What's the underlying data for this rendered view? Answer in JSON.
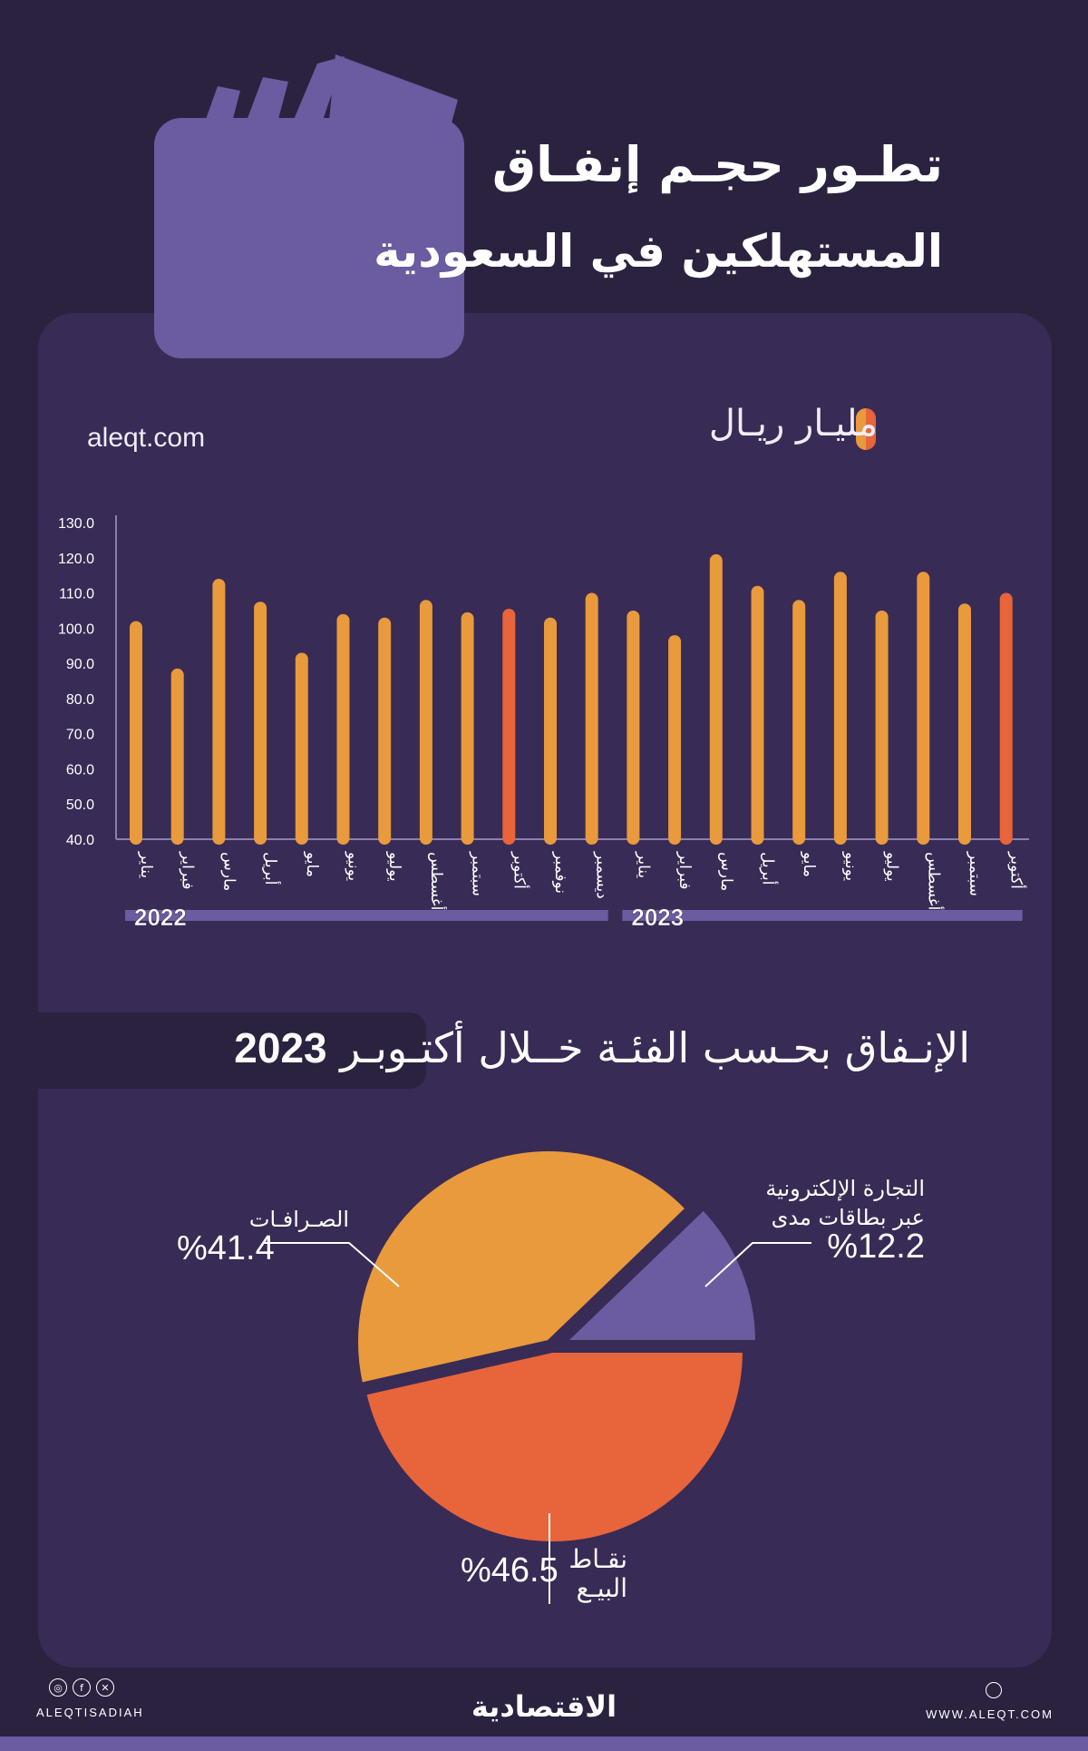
{
  "header": {
    "title_line1": "تطـور حجـم إنفـاق",
    "title_line2": "المستهلكين في السعودية",
    "site": "aleqt.com",
    "unit": "مليـار ريـال"
  },
  "colors": {
    "background": "#2b2240",
    "panel": "#382b55",
    "bar": "#e89a3c",
    "highlight": "#e8643a",
    "purple": "#6b5ba0"
  },
  "chart_data": [
    {
      "type": "bar",
      "ylim": [
        40,
        130
      ],
      "yticks": [
        "130.0",
        "120.0",
        "110.0",
        "100.0",
        "90.0",
        "80.0",
        "70.0",
        "60.0",
        "50.0",
        "40.0"
      ],
      "categories": [
        "يناير",
        "فبراير",
        "مارس",
        "أبريل",
        "مايو",
        "يونيو",
        "يوليو",
        "أغسطس",
        "سبتمبر",
        "أكتوبر",
        "نوفمبر",
        "ديسمبر",
        "يناير",
        "فبراير",
        "مارس",
        "أبريل",
        "مايو",
        "يونيو",
        "يوليو",
        "أغسطس",
        "سبتمبر",
        "أكتوبر"
      ],
      "groups": [
        {
          "label": "2022",
          "count": 12
        },
        {
          "label": "2023",
          "count": 10
        }
      ],
      "values": [
        102,
        88.5,
        114,
        107.5,
        93,
        104,
        103,
        108,
        104.5,
        105.5,
        103,
        110,
        105,
        98,
        121,
        112,
        108,
        116,
        105,
        116,
        107,
        110
      ],
      "highlighted": [
        9,
        21
      ],
      "ylabel": "مليـار ريـال"
    },
    {
      "type": "pie",
      "title": "الإنـفاق بحـسب الفئـة خــلال أكتـوبـر",
      "title_year": "2023",
      "slices": [
        {
          "label": "نقـاط البيـع",
          "label_lines": [
            "نقـاط",
            "البيـع"
          ],
          "value": 46.5,
          "pct_text": "%46.5",
          "color": "#e8643a"
        },
        {
          "label": "الصـرافـات",
          "value": 41.4,
          "pct_text": "%41.4",
          "color": "#e89a3c"
        },
        {
          "label": "التجارة الإلكترونية عبر بطاقات مدى",
          "label_lines": [
            "التجارة الإلكترونية",
            "عبر بطاقات مدى"
          ],
          "value": 12.2,
          "pct_text": "%12.2",
          "color": "#6b5ba0"
        }
      ]
    }
  ],
  "footer": {
    "handle": "ALEQTISADIAH",
    "brand": "الاقتصادية",
    "website": "WWW.ALEQT.COM",
    "social_icons": [
      "instagram-icon",
      "facebook-icon",
      "x-icon"
    ]
  }
}
